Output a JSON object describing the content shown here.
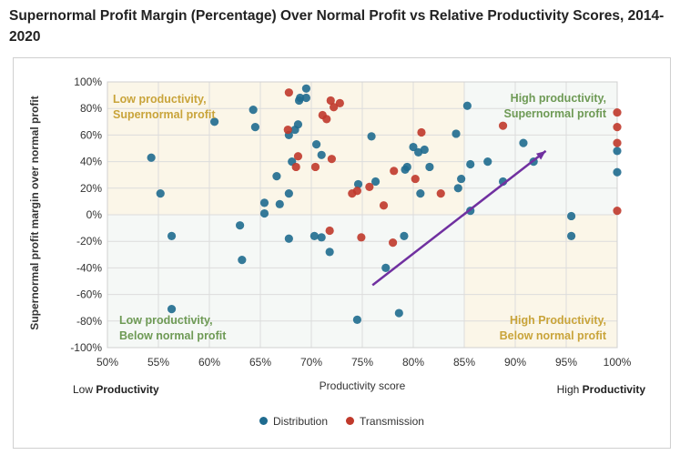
{
  "title": "Supernormal Profit Margin (Percentage) Over Normal Profit vs Relative Productivity Scores, 2014-2020",
  "chart_data": {
    "type": "scatter",
    "xlabel": "Productivity score",
    "ylabel": "Supernormal profit margin over normal profit",
    "xlim": [
      50,
      100
    ],
    "ylim": [
      -100,
      100
    ],
    "xticks": [
      "50%",
      "55%",
      "60%",
      "65%",
      "70%",
      "75%",
      "80%",
      "85%",
      "90%",
      "95%",
      "100%"
    ],
    "yticks": [
      "100%",
      "80%",
      "60%",
      "40%",
      "20%",
      "0%",
      "-20%",
      "-40%",
      "-60%",
      "-80%",
      "-100%"
    ],
    "grid": true,
    "legend": "bottom",
    "x_low_label": {
      "pre": "Low ",
      "bold": "Productivity"
    },
    "x_high_label": {
      "pre": "High ",
      "bold": "Productivity"
    },
    "quadrants": {
      "top_left": [
        "Low productivity,",
        "Supernormal profit"
      ],
      "top_right": [
        "High productivity,",
        "Supernormal profit"
      ],
      "bottom_left": [
        "Low productivity,",
        "Below normal profit"
      ],
      "bottom_right": [
        "High Productivity,",
        "Below normal profit"
      ]
    },
    "arrow": {
      "from": [
        76,
        -53
      ],
      "to": [
        93,
        48
      ],
      "color": "#7030a0"
    },
    "series": [
      {
        "name": "Distribution",
        "color": "#1f6b8f",
        "points": [
          [
            69.5,
            95
          ],
          [
            68.9,
            88
          ],
          [
            69.5,
            88
          ],
          [
            68.8,
            86
          ],
          [
            64.3,
            79
          ],
          [
            60.5,
            70
          ],
          [
            64.5,
            66
          ],
          [
            68.7,
            68
          ],
          [
            68.4,
            64
          ],
          [
            67.8,
            60
          ],
          [
            70.5,
            53
          ],
          [
            71.0,
            45
          ],
          [
            54.3,
            43
          ],
          [
            68.1,
            40
          ],
          [
            66.6,
            29
          ],
          [
            55.2,
            16
          ],
          [
            67.8,
            16
          ],
          [
            65.4,
            9
          ],
          [
            66.9,
            8
          ],
          [
            65.4,
            1
          ],
          [
            74.6,
            23
          ],
          [
            63.0,
            -8
          ],
          [
            56.3,
            -16
          ],
          [
            67.8,
            -18
          ],
          [
            70.3,
            -16
          ],
          [
            71.0,
            -17
          ],
          [
            71.8,
            -28
          ],
          [
            63.2,
            -34
          ],
          [
            56.3,
            -71
          ],
          [
            74.5,
            -79
          ],
          [
            85.3,
            82
          ],
          [
            75.9,
            59
          ],
          [
            84.2,
            61
          ],
          [
            80.0,
            51
          ],
          [
            80.5,
            47
          ],
          [
            81.1,
            49
          ],
          [
            90.8,
            54
          ],
          [
            85.6,
            38
          ],
          [
            87.3,
            40
          ],
          [
            91.8,
            40
          ],
          [
            79.2,
            34
          ],
          [
            79.4,
            36
          ],
          [
            81.6,
            36
          ],
          [
            76.3,
            25
          ],
          [
            84.7,
            27
          ],
          [
            84.4,
            20
          ],
          [
            80.7,
            16
          ],
          [
            88.8,
            25
          ],
          [
            85.6,
            3
          ],
          [
            95.5,
            -1
          ],
          [
            95.5,
            -16
          ],
          [
            100,
            48
          ],
          [
            100,
            32
          ],
          [
            79.1,
            -16
          ],
          [
            77.3,
            -40
          ],
          [
            78.6,
            -74
          ]
        ]
      },
      {
        "name": "Transmission",
        "color": "#c0392b",
        "points": [
          [
            67.8,
            92
          ],
          [
            71.9,
            86
          ],
          [
            72.8,
            84
          ],
          [
            72.2,
            81
          ],
          [
            71.1,
            75
          ],
          [
            71.5,
            72
          ],
          [
            67.7,
            64
          ],
          [
            68.7,
            44
          ],
          [
            72.0,
            42
          ],
          [
            68.5,
            36
          ],
          [
            70.4,
            36
          ],
          [
            74.0,
            16
          ],
          [
            74.5,
            18
          ],
          [
            71.8,
            -12
          ],
          [
            74.9,
            -17
          ],
          [
            80.8,
            62
          ],
          [
            88.8,
            67
          ],
          [
            100,
            77
          ],
          [
            100,
            66
          ],
          [
            100,
            54
          ],
          [
            100,
            3
          ],
          [
            78.1,
            33
          ],
          [
            80.2,
            27
          ],
          [
            75.7,
            21
          ],
          [
            82.7,
            16
          ],
          [
            77.1,
            7
          ],
          [
            78.0,
            -21
          ]
        ]
      }
    ]
  }
}
